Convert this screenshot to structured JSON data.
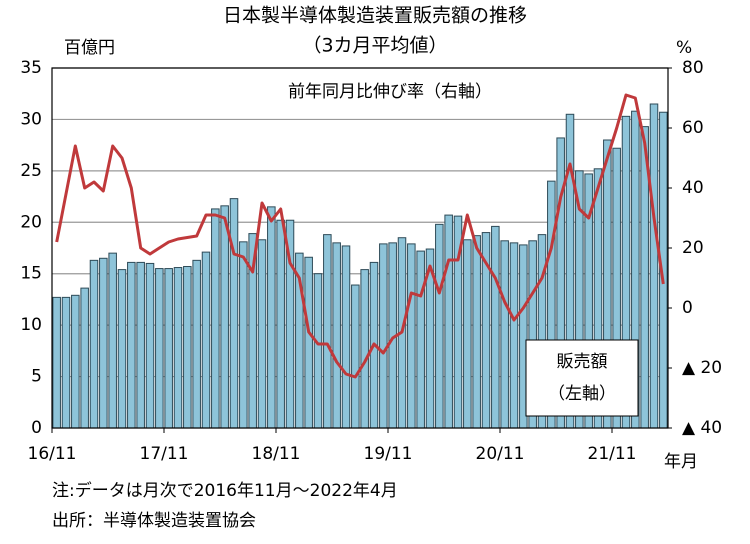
{
  "chart_data": {
    "type": "bar_line",
    "title": "日本製半導体製造装置販売額の推移",
    "subtitle": "（3カ月平均値）",
    "y_unit": "百億円",
    "y2_unit": "%",
    "x_unit": "年月",
    "annotations": [
      "前年同月比伸び率（右軸）",
      "販売額",
      "（左軸）"
    ],
    "notes": [
      "注:データは月次で2016年11月～2022年4月",
      "出所：半導体製造装置協会"
    ],
    "categories": [
      "16/11",
      null,
      null,
      null,
      null,
      null,
      null,
      null,
      null,
      null,
      null,
      null,
      "17/11",
      null,
      null,
      null,
      null,
      null,
      null,
      null,
      null,
      null,
      null,
      null,
      "18/11",
      null,
      null,
      null,
      null,
      null,
      null,
      null,
      null,
      null,
      null,
      null,
      "19/11",
      null,
      null,
      null,
      null,
      null,
      null,
      null,
      null,
      null,
      null,
      null,
      "20/11",
      null,
      null,
      null,
      null,
      null,
      null,
      null,
      null,
      null,
      null,
      null,
      "21/11",
      null,
      null,
      null,
      null,
      null
    ],
    "series": [
      {
        "type": "bar",
        "color": "#8ec4d9",
        "values": [
          12.7,
          12.7,
          12.9,
          13.6,
          16.3,
          16.5,
          17.0,
          15.4,
          16.1,
          16.1,
          16.0,
          15.5,
          15.5,
          15.6,
          15.7,
          16.3,
          17.1,
          21.3,
          21.6,
          22.3,
          18.1,
          18.9,
          18.3,
          21.5,
          20.2,
          20.2,
          17.0,
          16.6,
          15.0,
          18.8,
          18.0,
          17.7,
          13.9,
          15.4,
          16.1,
          17.9,
          18.0,
          18.5,
          17.9,
          17.2,
          17.4,
          19.8,
          20.7,
          20.6,
          18.3,
          18.7,
          19.0,
          19.6,
          18.2,
          18.0,
          17.8,
          18.2,
          18.8,
          24.0,
          28.2,
          30.5,
          25.0,
          24.7,
          25.2,
          28.0,
          27.2,
          30.3,
          30.8,
          29.3,
          31.5,
          30.7
        ]
      },
      {
        "type": "line",
        "axis": "y2",
        "color": "#c0393b",
        "values": [
          22,
          38,
          54,
          40,
          42,
          39,
          54,
          50,
          40,
          20,
          18,
          20,
          22,
          23,
          23.5,
          24,
          31,
          31,
          30,
          18,
          17,
          12,
          35,
          29,
          33,
          15,
          10,
          -8,
          -12,
          -12,
          -18,
          -22,
          -23,
          -18,
          -12,
          -15,
          -10,
          -8,
          5,
          4,
          14,
          5,
          16,
          16,
          31,
          20,
          15,
          10,
          2,
          -4,
          0,
          5,
          10,
          20,
          37,
          48,
          33,
          30,
          40,
          50,
          60,
          71,
          70,
          55,
          30,
          8
        ]
      }
    ],
    "ylim": [
      0,
      35
    ],
    "yticks": [
      0,
      5,
      10,
      15,
      20,
      25,
      30,
      35
    ],
    "y2lim": [
      -40,
      80
    ],
    "y2ticks": [
      {
        "value": -40,
        "label": "▲ 40"
      },
      {
        "value": -20,
        "label": "▲ 20"
      },
      0,
      20,
      40,
      60,
      80
    ],
    "grid": true
  }
}
